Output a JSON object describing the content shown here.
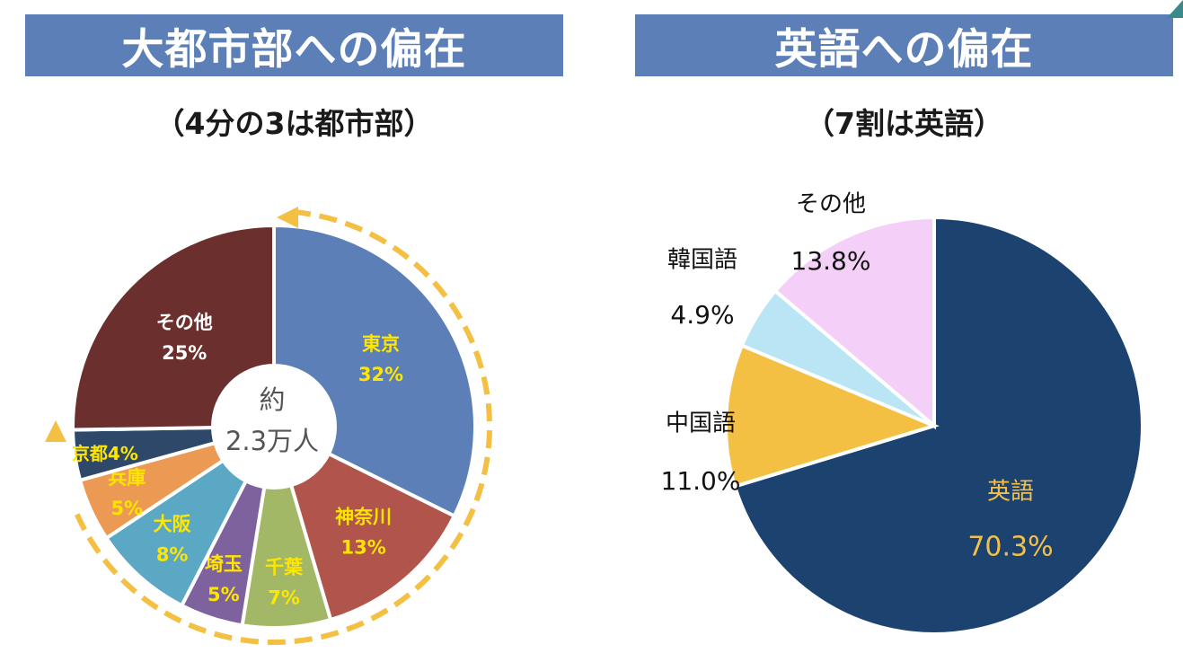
{
  "left_panel": {
    "banner": "大都市部への偏在",
    "subtitle": "（4分の3は都市部）",
    "center_label": [
      "約",
      "2.3万人"
    ]
  },
  "right_panel": {
    "banner": "英語への偏在",
    "subtitle": "（7割は英語）"
  },
  "chart_data": [
    {
      "type": "pie",
      "variant": "donut",
      "slices": [
        {
          "label": "東京",
          "value": 32,
          "display": "32%",
          "color": "#5b7fb6",
          "text_color": "#ffe600"
        },
        {
          "label": "神奈川",
          "value": 13,
          "display": "13%",
          "color": "#b0544c",
          "text_color": "#ffe600"
        },
        {
          "label": "千葉",
          "value": 7,
          "display": "7%",
          "color": "#a2b866",
          "text_color": "#ffe600"
        },
        {
          "label": "埼玉",
          "value": 5,
          "display": "5%",
          "color": "#7e629e",
          "text_color": "#ffe600"
        },
        {
          "label": "大阪",
          "value": 8,
          "display": "8%",
          "color": "#5ba8c4",
          "text_color": "#ffe600"
        },
        {
          "label": "兵庫",
          "value": 5,
          "display": "5%",
          "color": "#ec9953",
          "text_color": "#ffe600"
        },
        {
          "label": "京都",
          "value": 4,
          "display": "4%",
          "color": "#2e4869",
          "text_color": "#ffe600"
        },
        {
          "label": "その他",
          "value": 25,
          "display": "25%",
          "color": "#6b2f2d",
          "text_color": "#ffffff"
        }
      ]
    },
    {
      "type": "pie",
      "slices": [
        {
          "label": "英語",
          "value": 70.3,
          "display": "70.3%",
          "color": "#1c4270",
          "text_color": "#f4c04a"
        },
        {
          "label": "中国語",
          "value": 11.0,
          "display": "11.0%",
          "color": "#f4c043",
          "text_color": "#111111"
        },
        {
          "label": "韓国語",
          "value": 4.9,
          "display": "4.9%",
          "color": "#b9e5f5",
          "text_color": "#111111"
        },
        {
          "label": "その他",
          "value": 13.8,
          "display": "13.8%",
          "color": "#f4d0f9",
          "text_color": "#111111"
        }
      ]
    }
  ],
  "colors": {
    "banner_bg": "#5b7fb6",
    "arc_arrow": "#f4c043"
  }
}
